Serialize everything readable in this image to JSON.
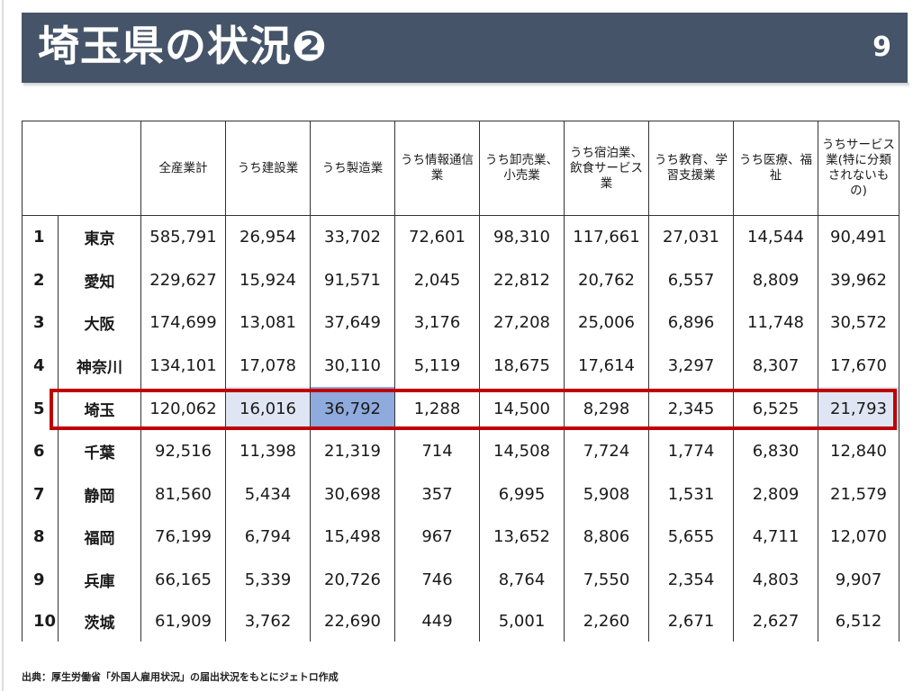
{
  "slide": {
    "title": "埼玉県の状況❷",
    "page_number": "9",
    "source": "出典：厚生労働省「外国人雇用状況」の届出状況をもとにジェトロ作成"
  },
  "table": {
    "headers": [
      "",
      "",
      "全産業計",
      "うち建設業",
      "うち製造業",
      "うち情報通信業",
      "うち卸売業、小売業",
      "うち宿泊業、飲食サービス業",
      "うち教育、学習支援業",
      "うち医療、福祉",
      "うちサービス業(特に分類されないもの)"
    ],
    "rows": [
      {
        "rank": "1",
        "pref": "東京",
        "values": [
          "585,791",
          "26,954",
          "33,702",
          "72,601",
          "98,310",
          "117,661",
          "27,031",
          "14,544",
          "90,491"
        ]
      },
      {
        "rank": "2",
        "pref": "愛知",
        "values": [
          "229,627",
          "15,924",
          "91,571",
          "2,045",
          "22,812",
          "20,762",
          "6,557",
          "8,809",
          "39,962"
        ]
      },
      {
        "rank": "3",
        "pref": "大阪",
        "values": [
          "174,699",
          "13,081",
          "37,649",
          "3,176",
          "27,208",
          "25,006",
          "6,896",
          "11,748",
          "30,572"
        ]
      },
      {
        "rank": "4",
        "pref": "神奈川",
        "values": [
          "134,101",
          "17,078",
          "30,110",
          "5,119",
          "18,675",
          "17,614",
          "3,297",
          "8,307",
          "17,670"
        ]
      },
      {
        "rank": "5",
        "pref": "埼玉",
        "values": [
          "120,062",
          "16,016",
          "36,792",
          "1,288",
          "14,500",
          "8,298",
          "2,345",
          "6,525",
          "21,793"
        ]
      },
      {
        "rank": "6",
        "pref": "千葉",
        "values": [
          "92,516",
          "11,398",
          "21,319",
          "714",
          "14,508",
          "7,724",
          "1,774",
          "6,830",
          "12,840"
        ]
      },
      {
        "rank": "7",
        "pref": "静岡",
        "values": [
          "81,560",
          "5,434",
          "30,698",
          "357",
          "6,995",
          "5,908",
          "1,531",
          "2,809",
          "21,579"
        ]
      },
      {
        "rank": "8",
        "pref": "福岡",
        "values": [
          "76,199",
          "6,794",
          "15,498",
          "967",
          "13,652",
          "8,806",
          "5,655",
          "4,711",
          "12,070"
        ]
      },
      {
        "rank": "9",
        "pref": "兵庫",
        "values": [
          "66,165",
          "5,339",
          "20,726",
          "746",
          "8,764",
          "7,550",
          "2,354",
          "4,803",
          "9,907"
        ]
      },
      {
        "rank": "10",
        "pref": "茨城",
        "values": [
          "61,909",
          "3,762",
          "22,690",
          "449",
          "5,001",
          "2,260",
          "2,671",
          "2,627",
          "6,512"
        ]
      }
    ],
    "highlight_row": 4,
    "highlight_cells": {
      "1": "light",
      "2": "dark",
      "8": "light"
    }
  },
  "colors": {
    "title_bar": "#455469",
    "highlight_border": "#c00000",
    "cell_light": "#dfe5f3",
    "cell_dark": "#8faadc"
  }
}
